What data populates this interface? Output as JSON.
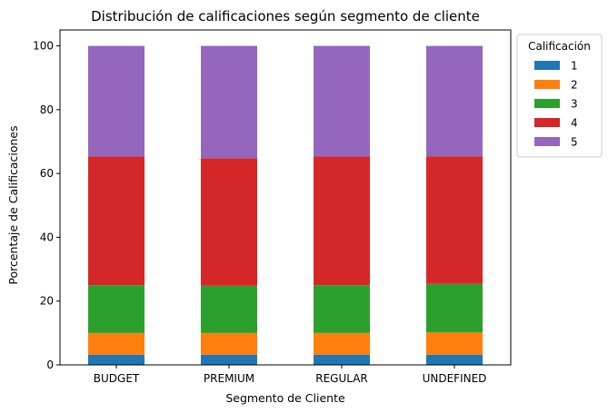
{
  "chart_data": {
    "type": "bar",
    "stacked": true,
    "title": "Distribución de calificaciones según segmento de cliente",
    "xlabel": "Segmento de Cliente",
    "ylabel": "Porcentaje de Calificaciones",
    "ylim": [
      0,
      105
    ],
    "yticks": [
      0,
      20,
      40,
      60,
      80,
      100
    ],
    "categories": [
      "BUDGET",
      "PREMIUM",
      "REGULAR",
      "UNDEFINED"
    ],
    "series": [
      {
        "name": "1",
        "color": "#1f77b4",
        "values": [
          3.2,
          3.2,
          3.2,
          3.2
        ]
      },
      {
        "name": "2",
        "color": "#ff7f0e",
        "values": [
          6.8,
          6.8,
          6.8,
          7.0
        ]
      },
      {
        "name": "3",
        "color": "#2ca02c",
        "values": [
          15.0,
          14.8,
          15.0,
          15.2
        ]
      },
      {
        "name": "4",
        "color": "#d62728",
        "values": [
          40.3,
          40.0,
          40.3,
          40.0
        ]
      },
      {
        "name": "5",
        "color": "#9467bd",
        "values": [
          34.7,
          35.2,
          34.7,
          34.6
        ]
      }
    ],
    "legend": {
      "title": "Calificación",
      "position": "upper-right-outside"
    },
    "grid": false
  }
}
